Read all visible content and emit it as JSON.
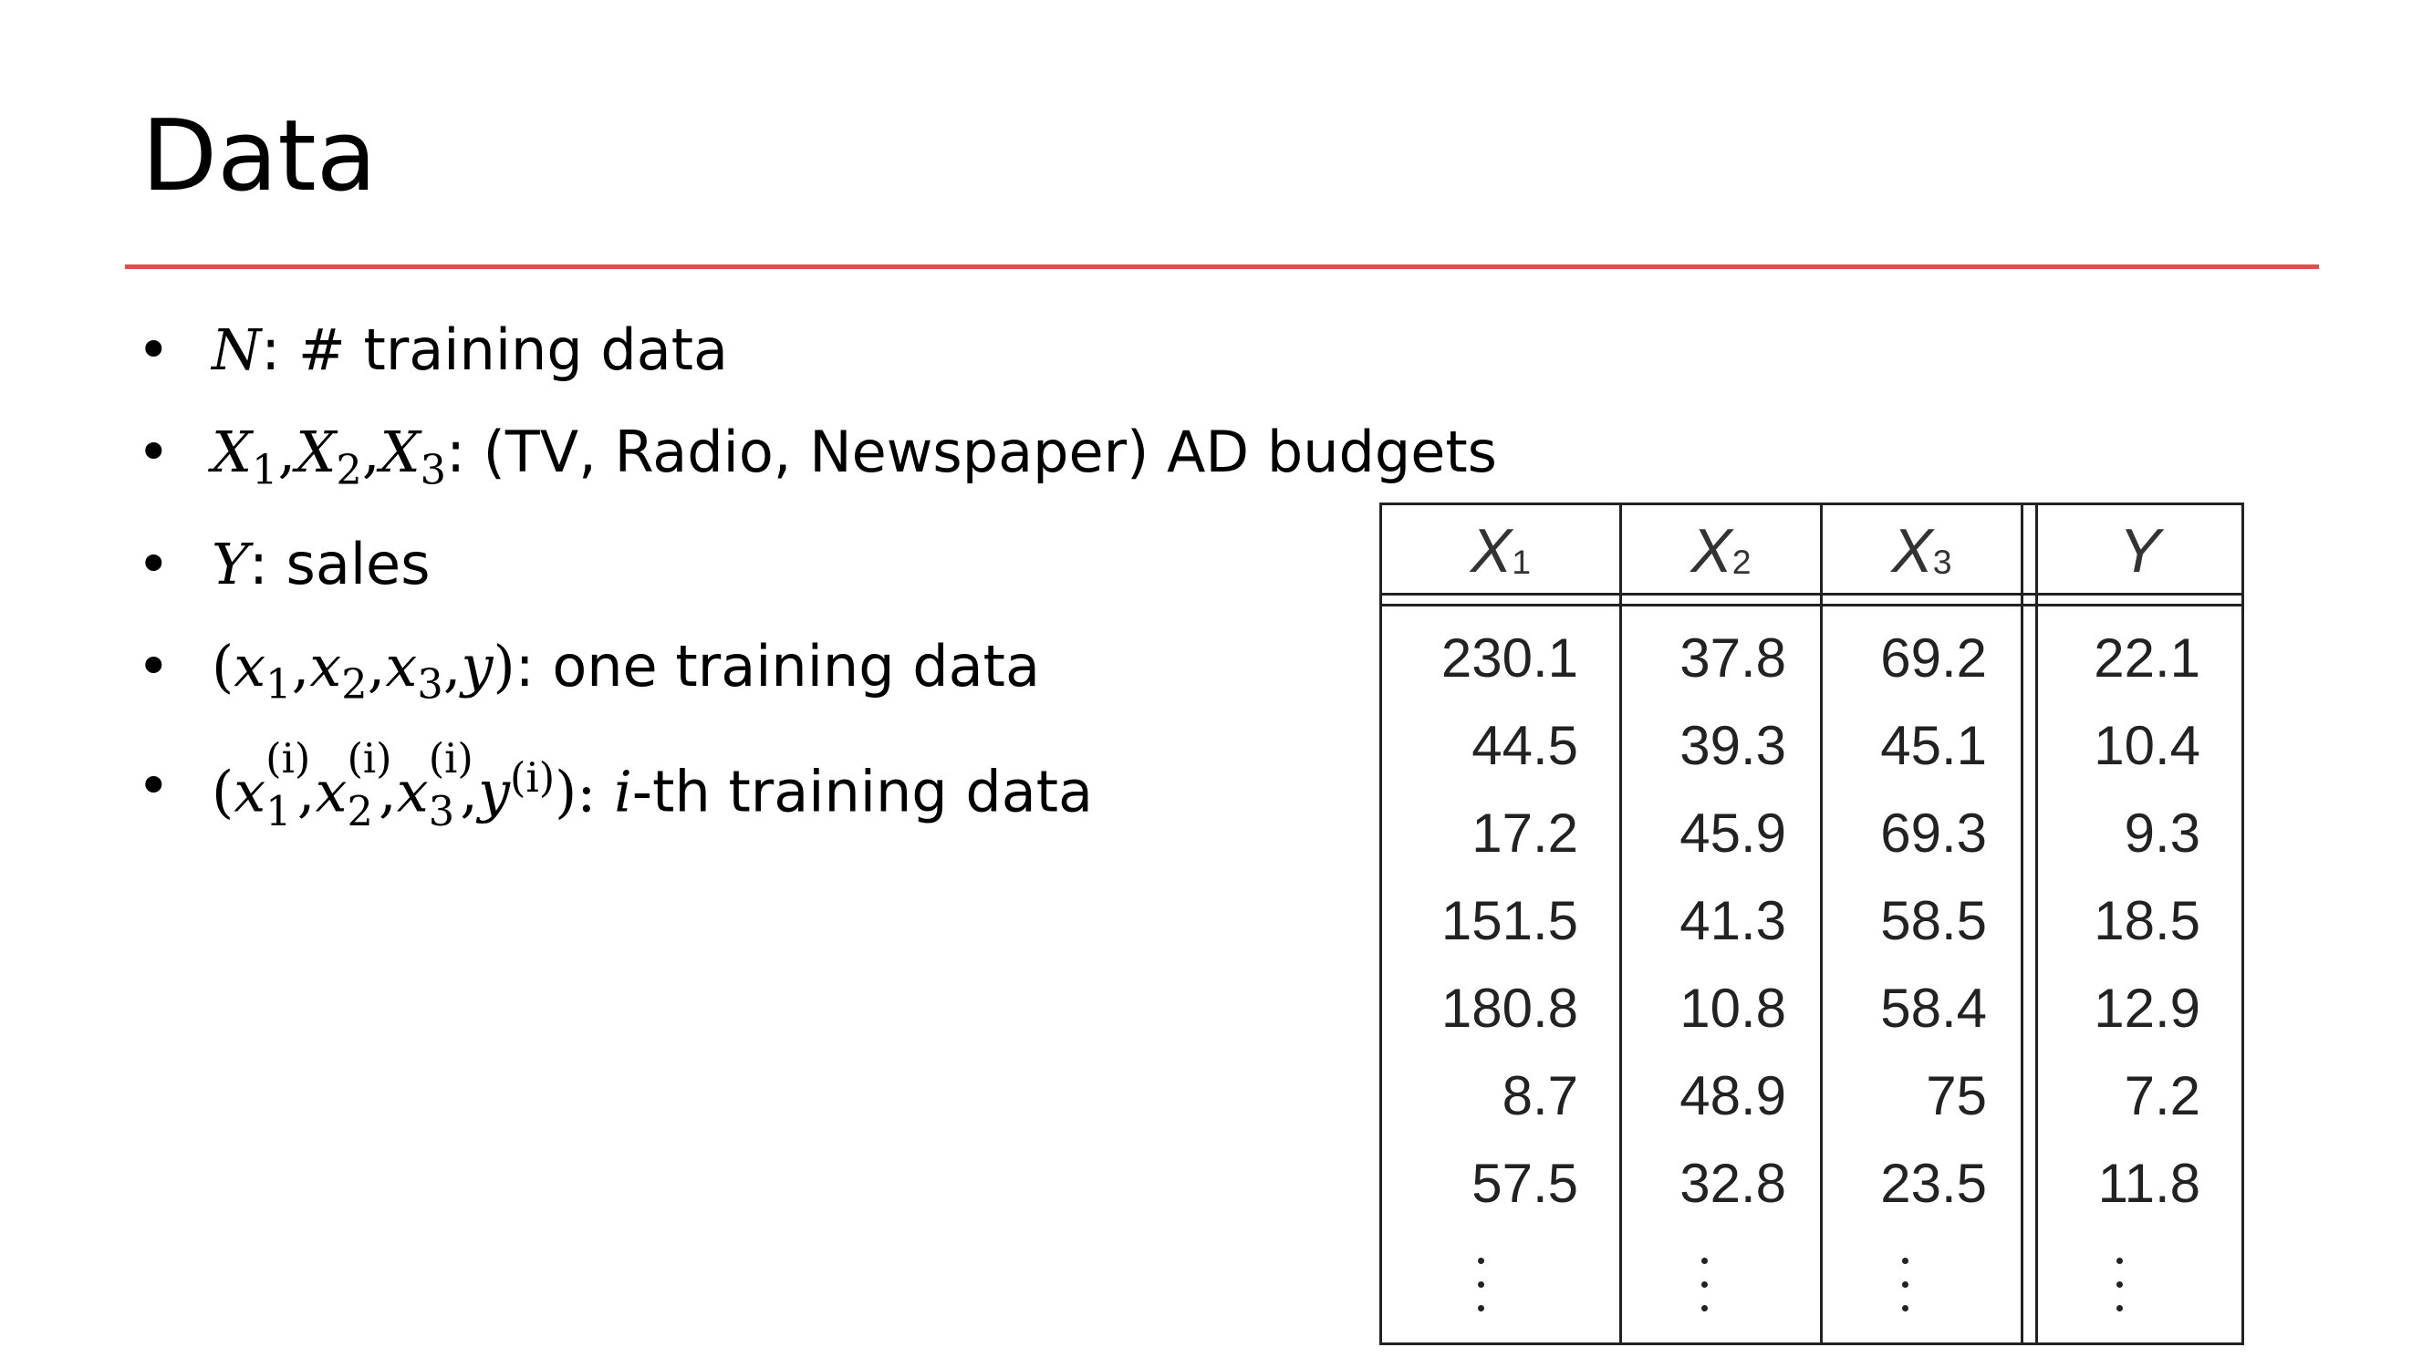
{
  "slide": {
    "title": "Data"
  },
  "bullets": [
    {
      "symbol": "N",
      "text": ": # training data"
    },
    {
      "symbols": [
        "X",
        "X",
        "X"
      ],
      "subs": [
        "1",
        "2",
        "3"
      ],
      "text": ": (TV, Radio, Newspaper) AD budgets"
    },
    {
      "symbol": "Y",
      "text": ": sales"
    },
    {
      "expr_open": "(",
      "symbols": [
        "x",
        "x",
        "x",
        "y"
      ],
      "subs": [
        "1",
        "2",
        "3"
      ],
      "expr_close": ")",
      "text": ": one training data"
    },
    {
      "expr_open": "(",
      "symbols": [
        "x",
        "x",
        "x",
        "y"
      ],
      "subs": [
        "1",
        "2",
        "3"
      ],
      "sup": "(i)",
      "expr_close": ")",
      "index": "i",
      "text": "-th training data"
    }
  ],
  "table": {
    "headers": [
      {
        "var": "X",
        "sub": "1"
      },
      {
        "var": "X",
        "sub": "2"
      },
      {
        "var": "X",
        "sub": "3"
      },
      {
        "var": "Y",
        "sub": ""
      }
    ],
    "rows": [
      [
        "230.1",
        "37.8",
        "69.2",
        "22.1"
      ],
      [
        "44.5",
        "39.3",
        "45.1",
        "10.4"
      ],
      [
        "17.2",
        "45.9",
        "69.3",
        "9.3"
      ],
      [
        "151.5",
        "41.3",
        "58.5",
        "18.5"
      ],
      [
        "180.8",
        "10.8",
        "58.4",
        "12.9"
      ],
      [
        "8.7",
        "48.9",
        "75",
        "7.2"
      ],
      [
        "57.5",
        "32.8",
        "23.5",
        "11.8"
      ]
    ],
    "ellipsis": "⋮"
  }
}
